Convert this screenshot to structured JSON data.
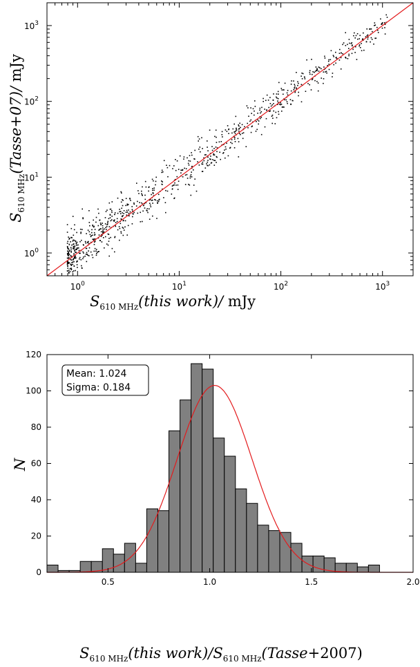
{
  "chart_data": [
    {
      "type": "scatter",
      "xlabel": "S610 MHz(this work)/ mJy",
      "ylabel": "S610 MHz(Tasse+07)/ mJy",
      "xscale": "log",
      "yscale": "log",
      "xlim": [
        0.5,
        2000
      ],
      "ylim": [
        0.5,
        2000
      ],
      "xticks": [
        1,
        10,
        100,
        1000
      ],
      "xtick_labels": [
        "10^0",
        "10^1",
        "10^2",
        "10^3"
      ],
      "yticks": [
        1,
        10,
        100,
        1000
      ],
      "ytick_labels": [
        "10^0",
        "10^1",
        "10^2",
        "10^3"
      ],
      "reference_line": {
        "type": "y=x",
        "color": "#e31a1c"
      },
      "point_color": "#000000",
      "n_points": 950,
      "scatter_sigma_dex": 0.13,
      "series": [
        {
          "values_x": [
            0.8,
            0.9,
            1.0,
            1.2,
            1.5,
            2.0,
            3.0,
            5.0,
            8.0,
            10,
            15,
            20,
            30,
            50,
            80,
            100,
            150,
            200,
            300,
            500,
            700,
            1000
          ],
          "values_y": [
            1.2,
            0.9,
            0.8,
            1.1,
            1.6,
            2.2,
            3.1,
            4.7,
            8.5,
            10,
            14,
            21,
            32,
            48,
            78,
            105,
            140,
            180,
            290,
            480,
            650,
            1100
          ]
        }
      ]
    },
    {
      "type": "bar",
      "xlabel": "S610 MHz(this work)/S610 MHz(Tasse+2007)",
      "ylabel": "N",
      "xlim": [
        0.2,
        2.0
      ],
      "ylim": [
        0,
        120
      ],
      "xticks": [
        "0.5",
        "1.0",
        "1.5",
        "2.0"
      ],
      "yticks": [
        "0",
        "20",
        "40",
        "60",
        "80",
        "100",
        "120"
      ],
      "bin_width": 0.0545,
      "bin_start": 0.2,
      "values": [
        4,
        1,
        1,
        6,
        6,
        13,
        10,
        16,
        5,
        35,
        34,
        78,
        95,
        115,
        112,
        74,
        64,
        46,
        38,
        26,
        23,
        22,
        16,
        9,
        9,
        8,
        5,
        5,
        3,
        4
      ],
      "bar_color": "#808080",
      "gaussian": {
        "mean": 1.024,
        "sigma": 0.184,
        "peak": 103,
        "color": "#e31a1c"
      },
      "annotation": {
        "mean_text": "Mean: 1.024",
        "sigma_text": "Sigma: 0.184"
      }
    }
  ]
}
